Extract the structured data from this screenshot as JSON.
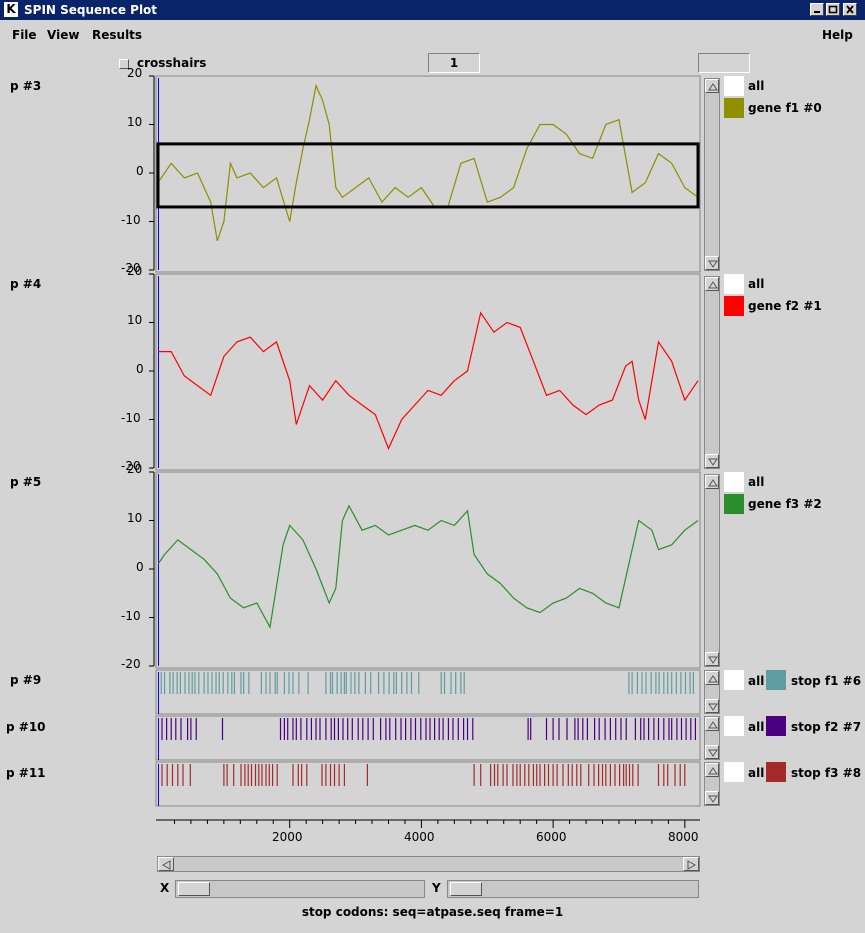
{
  "window": {
    "title": "SPIN Sequence Plot",
    "app_letter": "K"
  },
  "menu": {
    "file": "File",
    "view": "View",
    "results": "Results",
    "help": "Help"
  },
  "toolbar": {
    "crosshairs_label": "crosshairs",
    "field_value": "1",
    "right_field_value": ""
  },
  "panels": [
    {
      "label": "p #3",
      "legend_all": "all",
      "legend_name": "gene f1 #0",
      "color": "#8f8f00"
    },
    {
      "label": "p #4",
      "legend_all": "all",
      "legend_name": "gene f2 #1",
      "color": "#ff0000"
    },
    {
      "label": "p #5",
      "legend_all": "all",
      "legend_name": "gene f3 #2",
      "color": "#2a8f2a"
    },
    {
      "label": "p #9",
      "legend_all": "all",
      "legend_name": "stop f1 #6",
      "color": "#5f9ea0"
    },
    {
      "label": "p #10",
      "legend_all": "all",
      "legend_name": "stop f2 #7",
      "color": "#4b0082"
    },
    {
      "label": "p #11",
      "legend_all": "all",
      "legend_name": "stop f3 #8",
      "color": "#a52a2a"
    }
  ],
  "yticks": [
    "20",
    "10",
    "0",
    "-10",
    "-20"
  ],
  "xticks": [
    "2000",
    "4000",
    "6000",
    "8000"
  ],
  "scroll": {
    "x_label": "X",
    "y_label": "Y"
  },
  "status": "stop codons: seq=atpase.seq frame=1",
  "chart_data": {
    "type": "line",
    "xlim": [
      0,
      8200
    ],
    "ylim": [
      -20,
      20
    ],
    "selection_box": {
      "x": [
        0,
        8200
      ],
      "y": [
        -7,
        6
      ]
    },
    "series": [
      {
        "name": "gene f1 #0",
        "color": "#8f8f00",
        "points": [
          [
            0,
            -2
          ],
          [
            200,
            2
          ],
          [
            400,
            -1
          ],
          [
            600,
            0
          ],
          [
            800,
            -6
          ],
          [
            900,
            -14
          ],
          [
            1000,
            -10
          ],
          [
            1100,
            2
          ],
          [
            1200,
            -1
          ],
          [
            1400,
            0
          ],
          [
            1600,
            -3
          ],
          [
            1800,
            -1
          ],
          [
            2000,
            -10
          ],
          [
            2100,
            -2
          ],
          [
            2200,
            5
          ],
          [
            2300,
            11
          ],
          [
            2400,
            18
          ],
          [
            2500,
            15
          ],
          [
            2600,
            10
          ],
          [
            2700,
            -3
          ],
          [
            2800,
            -5
          ],
          [
            3000,
            -3
          ],
          [
            3200,
            -1
          ],
          [
            3400,
            -6
          ],
          [
            3600,
            -3
          ],
          [
            3800,
            -5
          ],
          [
            4000,
            -3
          ],
          [
            4200,
            -7
          ],
          [
            4400,
            -7
          ],
          [
            4600,
            2
          ],
          [
            4800,
            3
          ],
          [
            5000,
            -6
          ],
          [
            5200,
            -5
          ],
          [
            5400,
            -3
          ],
          [
            5600,
            5
          ],
          [
            5800,
            10
          ],
          [
            6000,
            10
          ],
          [
            6200,
            8
          ],
          [
            6400,
            4
          ],
          [
            6600,
            3
          ],
          [
            6800,
            10
          ],
          [
            7000,
            11
          ],
          [
            7200,
            -4
          ],
          [
            7400,
            -2
          ],
          [
            7600,
            4
          ],
          [
            7800,
            2
          ],
          [
            8000,
            -3
          ],
          [
            8200,
            -5
          ]
        ]
      },
      {
        "name": "gene f2 #1",
        "color": "#ff0000",
        "points": [
          [
            0,
            4
          ],
          [
            200,
            4
          ],
          [
            400,
            -1
          ],
          [
            600,
            -3
          ],
          [
            800,
            -5
          ],
          [
            1000,
            3
          ],
          [
            1200,
            6
          ],
          [
            1400,
            7
          ],
          [
            1600,
            4
          ],
          [
            1800,
            6
          ],
          [
            2000,
            -2
          ],
          [
            2100,
            -11
          ],
          [
            2300,
            -3
          ],
          [
            2500,
            -6
          ],
          [
            2700,
            -2
          ],
          [
            2900,
            -5
          ],
          [
            3100,
            -7
          ],
          [
            3300,
            -9
          ],
          [
            3500,
            -16
          ],
          [
            3700,
            -10
          ],
          [
            3900,
            -7
          ],
          [
            4100,
            -4
          ],
          [
            4300,
            -5
          ],
          [
            4500,
            -2
          ],
          [
            4700,
            0
          ],
          [
            4900,
            12
          ],
          [
            5100,
            8
          ],
          [
            5300,
            10
          ],
          [
            5500,
            9
          ],
          [
            5700,
            2
          ],
          [
            5900,
            -5
          ],
          [
            6100,
            -4
          ],
          [
            6300,
            -7
          ],
          [
            6500,
            -9
          ],
          [
            6700,
            -7
          ],
          [
            6900,
            -6
          ],
          [
            7100,
            1
          ],
          [
            7200,
            2
          ],
          [
            7300,
            -6
          ],
          [
            7400,
            -10
          ],
          [
            7600,
            6
          ],
          [
            7800,
            2
          ],
          [
            8000,
            -6
          ],
          [
            8200,
            -2
          ]
        ]
      },
      {
        "name": "gene f3 #2",
        "color": "#2a8f2a",
        "points": [
          [
            0,
            1
          ],
          [
            100,
            3
          ],
          [
            300,
            6
          ],
          [
            500,
            4
          ],
          [
            700,
            2
          ],
          [
            900,
            -1
          ],
          [
            1100,
            -6
          ],
          [
            1300,
            -8
          ],
          [
            1500,
            -7
          ],
          [
            1700,
            -12
          ],
          [
            1900,
            5
          ],
          [
            2000,
            9
          ],
          [
            2200,
            6
          ],
          [
            2400,
            0
          ],
          [
            2600,
            -7
          ],
          [
            2700,
            -4
          ],
          [
            2800,
            10
          ],
          [
            2900,
            13
          ],
          [
            3100,
            8
          ],
          [
            3300,
            9
          ],
          [
            3500,
            7
          ],
          [
            3700,
            8
          ],
          [
            3900,
            9
          ],
          [
            4100,
            8
          ],
          [
            4300,
            10
          ],
          [
            4500,
            9
          ],
          [
            4700,
            12
          ],
          [
            4800,
            3
          ],
          [
            5000,
            -1
          ],
          [
            5200,
            -3
          ],
          [
            5400,
            -6
          ],
          [
            5600,
            -8
          ],
          [
            5800,
            -9
          ],
          [
            6000,
            -7
          ],
          [
            6200,
            -6
          ],
          [
            6400,
            -4
          ],
          [
            6600,
            -5
          ],
          [
            6800,
            -7
          ],
          [
            7000,
            -8
          ],
          [
            7200,
            4
          ],
          [
            7300,
            10
          ],
          [
            7500,
            8
          ],
          [
            7600,
            4
          ],
          [
            7800,
            5
          ],
          [
            8000,
            8
          ],
          [
            8200,
            10
          ]
        ]
      }
    ],
    "stop_codons": [
      {
        "name": "stop f1 #6",
        "color": "#5f9ea0",
        "x": [
          50,
          100,
          180,
          230,
          290,
          340,
          410,
          470,
          520,
          560,
          620,
          700,
          760,
          820,
          880,
          930,
          990,
          1060,
          1120,
          1160,
          1260,
          1300,
          1380,
          1570,
          1640,
          1700,
          1780,
          1810,
          1920,
          1990,
          2050,
          2140,
          2280,
          2550,
          2620,
          2650,
          2720,
          2780,
          2830,
          2860,
          2930,
          2990,
          3050,
          3150,
          3230,
          3350,
          3430,
          3510,
          3580,
          3620,
          3700,
          3780,
          3850,
          3960,
          4300,
          4350,
          4450,
          4520,
          4600,
          4650,
          7150,
          7200,
          7280,
          7350,
          7410,
          7490,
          7560,
          7610,
          7680,
          7740,
          7800,
          7870,
          7940,
          8010,
          8080,
          8130
        ]
      },
      {
        "name": "stop f2 #7",
        "color": "#4b0082",
        "x": [
          60,
          130,
          200,
          270,
          350,
          450,
          500,
          580,
          980,
          1860,
          1920,
          1970,
          2050,
          2100,
          2170,
          2260,
          2330,
          2400,
          2460,
          2550,
          2630,
          2680,
          2740,
          2810,
          2880,
          2950,
          3040,
          3110,
          3190,
          3270,
          3380,
          3460,
          3520,
          3610,
          3690,
          3760,
          3840,
          3910,
          3990,
          4070,
          4130,
          4200,
          4270,
          4330,
          4410,
          4480,
          4560,
          4640,
          4700,
          4780,
          5620,
          5660,
          5900,
          6000,
          6090,
          6210,
          6330,
          6380,
          6450,
          6520,
          6630,
          6700,
          6790,
          6870,
          6950,
          7030,
          7110,
          7250,
          7330,
          7380,
          7450,
          7530,
          7600,
          7680,
          7760,
          7800,
          7880,
          7950,
          8020,
          8090,
          8160
        ]
      },
      {
        "name": "stop f3 #8",
        "color": "#a52a2a",
        "x": [
          60,
          140,
          220,
          300,
          380,
          490,
          1000,
          1050,
          1150,
          1260,
          1320,
          1370,
          1420,
          1480,
          1530,
          1580,
          1640,
          1690,
          1740,
          1810,
          2050,
          2130,
          2180,
          2260,
          2490,
          2550,
          2620,
          2680,
          2750,
          2830,
          3180,
          4800,
          4900,
          5050,
          5110,
          5160,
          5240,
          5300,
          5390,
          5450,
          5500,
          5570,
          5630,
          5700,
          5750,
          5800,
          5870,
          5930,
          6000,
          6060,
          6150,
          6230,
          6290,
          6360,
          6420,
          6540,
          6620,
          6690,
          6750,
          6800,
          6870,
          6940,
          7010,
          7070,
          7110,
          7160,
          7210,
          7290,
          7600,
          7680,
          7740,
          7850,
          7930,
          8000
        ]
      }
    ]
  }
}
